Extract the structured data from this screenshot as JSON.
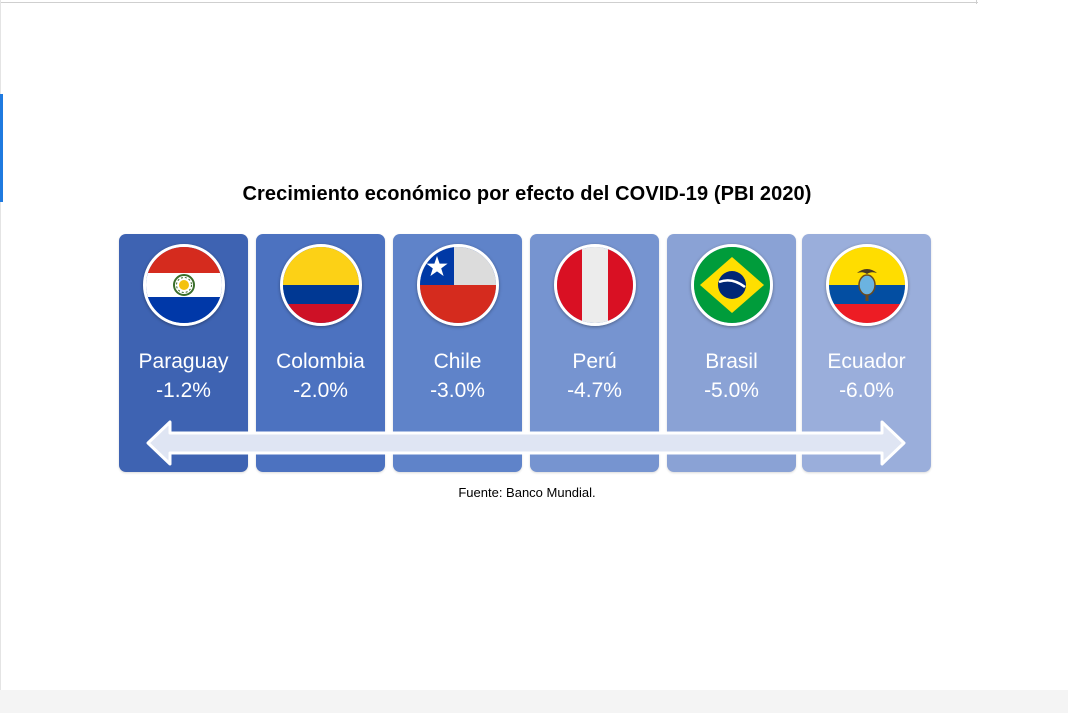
{
  "chart_data": {
    "type": "table",
    "title": "Crecimiento económico por efecto del COVID-19 (PBI 2020)",
    "categories": [
      "Paraguay",
      "Colombia",
      "Chile",
      "Perú",
      "Brasil",
      "Ecuador"
    ],
    "values": [
      -1.2,
      -2.0,
      -3.0,
      -4.7,
      -5.0,
      -6.0
    ],
    "value_labels": [
      "-1.2%",
      "-2.0%",
      "-3.0%",
      "-4.7%",
      "-5.0%",
      "-6.0%"
    ],
    "card_colors": [
      "#3e63b2",
      "#4c72c0",
      "#5f83c9",
      "#7694d0",
      "#8aa2d5",
      "#9aaedb"
    ],
    "flag_icons": [
      "paraguay-flag-icon",
      "colombia-flag-icon",
      "chile-flag-icon",
      "peru-flag-icon",
      "brazil-flag-icon",
      "ecuador-flag-icon"
    ],
    "source": "Fuente: Banco Mundial."
  }
}
